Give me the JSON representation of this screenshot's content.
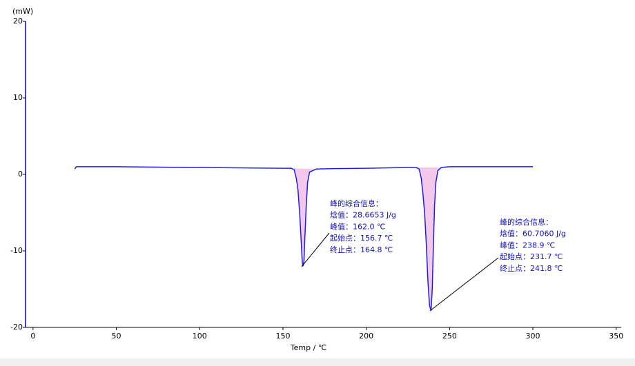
{
  "chart_data": {
    "type": "line",
    "y_label": "(mW)",
    "x_label": "Temp / ℃",
    "x": [
      25,
      26,
      30,
      50,
      100,
      150,
      155,
      156.7,
      158,
      159,
      160,
      161,
      161.6,
      162,
      162.6,
      163,
      164,
      164.8,
      166,
      170,
      180,
      200,
      225,
      230,
      231.7,
      233,
      234,
      235,
      236,
      237,
      238,
      238.9,
      239.6,
      240.2,
      241,
      241.8,
      243,
      245,
      250,
      275,
      300
    ],
    "series": [
      {
        "color": "#1c1cf0",
        "values": [
          0.7,
          1.0,
          1.0,
          1.0,
          0.9,
          0.8,
          0.8,
          0.6,
          -0.5,
          -2,
          -5,
          -9,
          -11.5,
          -12.0,
          -11.4,
          -9,
          -4,
          -1,
          0.3,
          0.7,
          0.75,
          0.8,
          0.9,
          0.9,
          0.7,
          -0.5,
          -2.5,
          -5,
          -9,
          -14,
          -17.2,
          -17.8,
          -15,
          -10,
          -4,
          -1,
          0.5,
          0.9,
          1.0,
          1.0,
          1.0
        ]
      }
    ],
    "xlim": [
      -4.5,
      353
    ],
    "xticks": [
      0,
      50,
      100,
      150,
      200,
      250,
      300,
      350
    ],
    "ylim": [
      -20,
      20
    ],
    "yticks": [
      -20,
      -10,
      0,
      10,
      20
    ],
    "annotations": [
      [
        "峰的综合信息：",
        "焓值：28.6653 J/g",
        "峰值：162.0 ℃",
        "起始点：156.7 ℃",
        "终止点：164.8 ℃"
      ],
      [
        "峰的综合信息：",
        "焓值：60.7060 J/g",
        "峰值：238.9 ℃",
        "起始点：231.7 ℃",
        "终止点：241.8 ℃"
      ]
    ]
  }
}
